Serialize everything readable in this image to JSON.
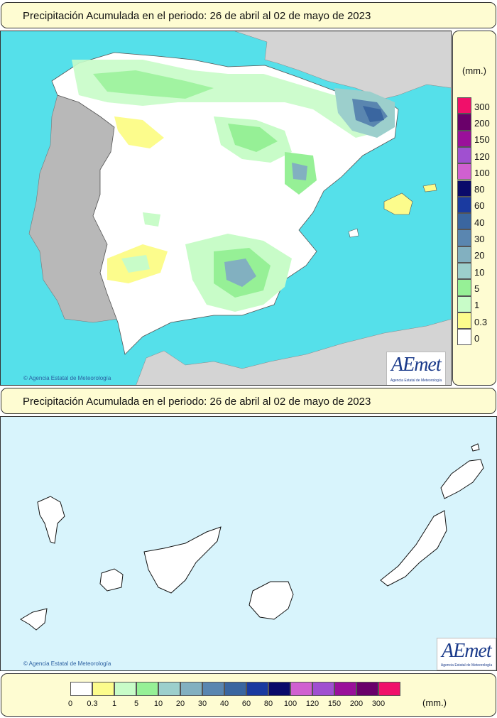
{
  "peninsula": {
    "title": "Precipitación Acumulada en el periodo: 26 de abril al 02 de mayo de 2023",
    "copyright": "© Agencia Estatal de Meteorología",
    "logo": {
      "word": "AEmet",
      "sub": "Agencia Estatal de Meteorología"
    },
    "legend_unit": "(mm.)"
  },
  "canarias": {
    "title": "Precipitación Acumulada en el periodo: 26 de abril al 02 de mayo de 2023",
    "copyright": "© Agencia Estatal de Meteorología",
    "logo": {
      "word": "AEmet",
      "sub": "Agencia Estatal de Meteorología"
    }
  },
  "legend": {
    "unit": "(mm.)",
    "classes": [
      {
        "label": "0",
        "color": "#ffffff"
      },
      {
        "label": "0.3",
        "color": "#fcfc8c"
      },
      {
        "label": "1",
        "color": "#c8fcc8"
      },
      {
        "label": "5",
        "color": "#96f096"
      },
      {
        "label": "10",
        "color": "#9ccfcc"
      },
      {
        "label": "20",
        "color": "#82b0c0"
      },
      {
        "label": "30",
        "color": "#5a86b0"
      },
      {
        "label": "40",
        "color": "#3a66a0"
      },
      {
        "label": "60",
        "color": "#1a3aa0"
      },
      {
        "label": "80",
        "color": "#0a0a6a"
      },
      {
        "label": "100",
        "color": "#d060d0"
      },
      {
        "label": "120",
        "color": "#a050d0"
      },
      {
        "label": "150",
        "color": "#9a109a"
      },
      {
        "label": "200",
        "color": "#6a006a"
      },
      {
        "label": "300",
        "color": "#f0106a"
      }
    ]
  },
  "colors": {
    "sea": "#55e0ea",
    "sea_canarias": "#d8f4fc",
    "other_land": "#d4d4d4",
    "portugal": "#b8b8b8"
  }
}
